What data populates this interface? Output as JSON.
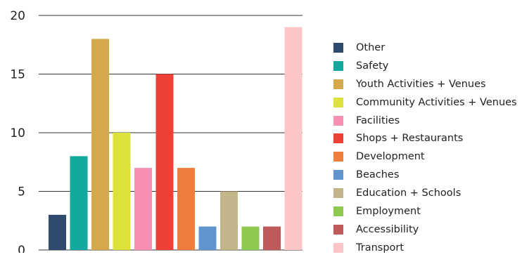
{
  "chart_data": {
    "type": "bar",
    "title": "",
    "xlabel": "",
    "ylabel": "",
    "ylim": [
      0,
      20
    ],
    "yticks": [
      0,
      5,
      10,
      15,
      20
    ],
    "grid": true,
    "legend_position": "right",
    "categories": [
      "Other",
      "Safety",
      "Youth Activities + Venues",
      "Community Activities + Venues",
      "Facilities",
      "Shops + Restaurants",
      "Development",
      "Beaches",
      "Education + Schools",
      "Employment",
      "Accessibility",
      "Transport"
    ],
    "values": [
      3,
      8,
      18,
      10,
      7,
      15,
      7,
      2,
      5,
      2,
      2,
      19
    ],
    "colors": [
      "#2e4b6f",
      "#13a89e",
      "#d4a94b",
      "#dce23a",
      "#f78fb0",
      "#ee4039",
      "#ef7d3c",
      "#5f94cf",
      "#c2b58a",
      "#8ec94f",
      "#bf5a5a",
      "#fcc6c8"
    ]
  }
}
